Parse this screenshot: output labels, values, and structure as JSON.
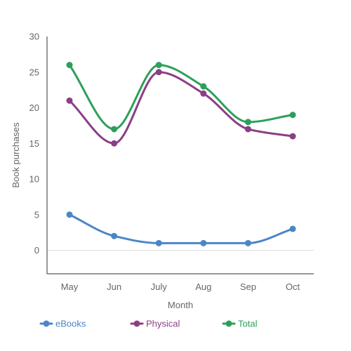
{
  "chart_data": {
    "type": "line",
    "categories": [
      "May",
      "Jun",
      "July",
      "Aug",
      "Sep",
      "Oct"
    ],
    "series": [
      {
        "name": "eBooks",
        "color": "#4a86c8",
        "values": [
          5,
          2,
          1,
          1,
          1,
          3
        ]
      },
      {
        "name": "Physical",
        "color": "#8a3f86",
        "values": [
          21,
          15,
          25,
          22,
          17,
          16
        ]
      },
      {
        "name": "Total",
        "color": "#2ca05a",
        "values": [
          26,
          17,
          26,
          23,
          18,
          19
        ]
      }
    ],
    "xlabel": "Month",
    "ylabel": "Book purchases",
    "ylim": [
      -3.3,
      30
    ],
    "yticks": [
      0,
      5,
      10,
      15,
      20,
      25,
      30
    ],
    "legend_position": "bottom-left",
    "smooth": true
  }
}
